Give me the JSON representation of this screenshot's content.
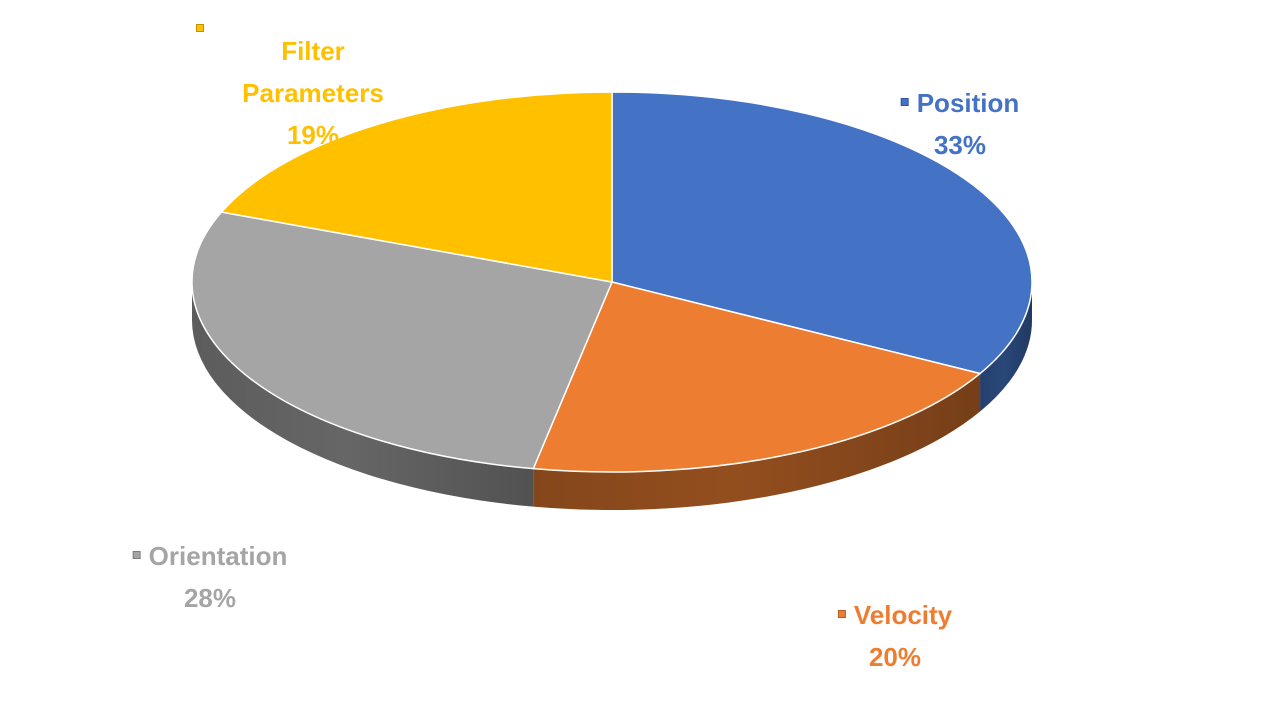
{
  "chart_data": {
    "type": "pie",
    "title": "",
    "style": "3d-perspective",
    "labels": [
      "Position",
      "Velocity",
      "Orientation",
      "Filter Parameters"
    ],
    "values": [
      33,
      20,
      28,
      19
    ],
    "value_labels": [
      "33%",
      "20%",
      "28%",
      "19%"
    ],
    "unit": "%",
    "colors": [
      "#4472C4",
      "#ED7D31",
      "#A5A5A5",
      "#FFC000"
    ],
    "legend": "data labels beside each slice",
    "grid": false
  }
}
